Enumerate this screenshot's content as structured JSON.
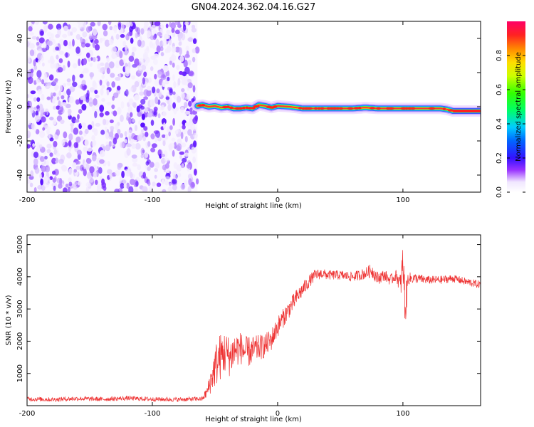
{
  "title": "GN04.2024.362.04.16.G27",
  "chart_data": [
    {
      "type": "heatmap",
      "xlabel": "Height of straight line (km)",
      "ylabel": "Frequency (Hz)",
      "xlim": [
        -200,
        162
      ],
      "ylim": [
        -50,
        50
      ],
      "x_ticks": [
        -200,
        -100,
        0,
        100
      ],
      "y_ticks": [
        -40,
        -20,
        0,
        20,
        40
      ],
      "colorbar": {
        "label": "Normalized spectral amplitude",
        "range": [
          0,
          1
        ],
        "ticks": [
          "0.0",
          "0.2",
          "0.4",
          "0.6",
          "0.8"
        ],
        "tick_values": [
          0.0,
          0.2,
          0.4,
          0.6,
          0.8
        ]
      },
      "noise_region_x": [
        -200,
        -64
      ],
      "ridge": {
        "x": [
          -64,
          -60,
          -55,
          -50,
          -45,
          -40,
          -35,
          -30,
          -25,
          -20,
          -15,
          -10,
          -5,
          0,
          10,
          20,
          30,
          40,
          50,
          60,
          70,
          80,
          90,
          100,
          110,
          120,
          130,
          135,
          140,
          150,
          162
        ],
        "freq_hz": [
          0.5,
          1.0,
          0.0,
          0.5,
          -0.5,
          0.0,
          -1.0,
          -1.0,
          -0.5,
          -1.0,
          1.0,
          0.5,
          -0.5,
          0.5,
          0.0,
          -1.0,
          -1.0,
          -1.0,
          -1.0,
          -1.0,
          -0.5,
          -1.0,
          -1.0,
          -1.0,
          -1.0,
          -1.0,
          -1.0,
          -1.5,
          -2.5,
          -2.5,
          -2.5
        ]
      }
    },
    {
      "type": "line",
      "xlabel": "Height of straight line (km)",
      "ylabel": "SNR (10 * v/v)",
      "xlim": [
        -200,
        162
      ],
      "ylim": [
        0,
        5300
      ],
      "x_ticks": [
        -200,
        -100,
        0,
        100
      ],
      "y_ticks": [
        1000,
        2000,
        3000,
        4000,
        5000
      ],
      "color": "#ee3333",
      "series": [
        {
          "x": [
            -200,
            -180,
            -160,
            -140,
            -120,
            -100,
            -80,
            -60,
            -56,
            -52,
            -49,
            -47,
            -45,
            -42,
            -38,
            -35,
            -30,
            -25,
            -20,
            -15,
            -10,
            -5,
            0,
            5,
            10,
            15,
            20,
            25,
            30,
            35,
            40,
            50,
            60,
            70,
            75,
            80,
            85,
            90,
            95,
            98,
            100,
            102,
            104,
            110,
            120,
            130,
            140,
            150,
            162
          ],
          "y": [
            210,
            190,
            220,
            200,
            230,
            200,
            190,
            210,
            450,
            950,
            1300,
            1450,
            1550,
            1650,
            1500,
            1700,
            1800,
            1650,
            1700,
            1800,
            1850,
            2050,
            2450,
            2750,
            3050,
            3350,
            3600,
            3850,
            4050,
            4100,
            4050,
            4050,
            4000,
            4100,
            4200,
            3950,
            4050,
            3900,
            4050,
            3700,
            4400,
            3000,
            3950,
            3950,
            3900,
            3900,
            3950,
            3850,
            3750
          ],
          "noise_amplitude": [
            70,
            70,
            70,
            70,
            70,
            70,
            70,
            70,
            200,
            500,
            700,
            800,
            700,
            700,
            600,
            600,
            500,
            500,
            450,
            400,
            380,
            350,
            330,
            300,
            280,
            260,
            230,
            200,
            180,
            160,
            150,
            150,
            150,
            180,
            220,
            200,
            180,
            170,
            180,
            400,
            700,
            700,
            200,
            150,
            130,
            130,
            120,
            120,
            120
          ]
        }
      ]
    }
  ]
}
